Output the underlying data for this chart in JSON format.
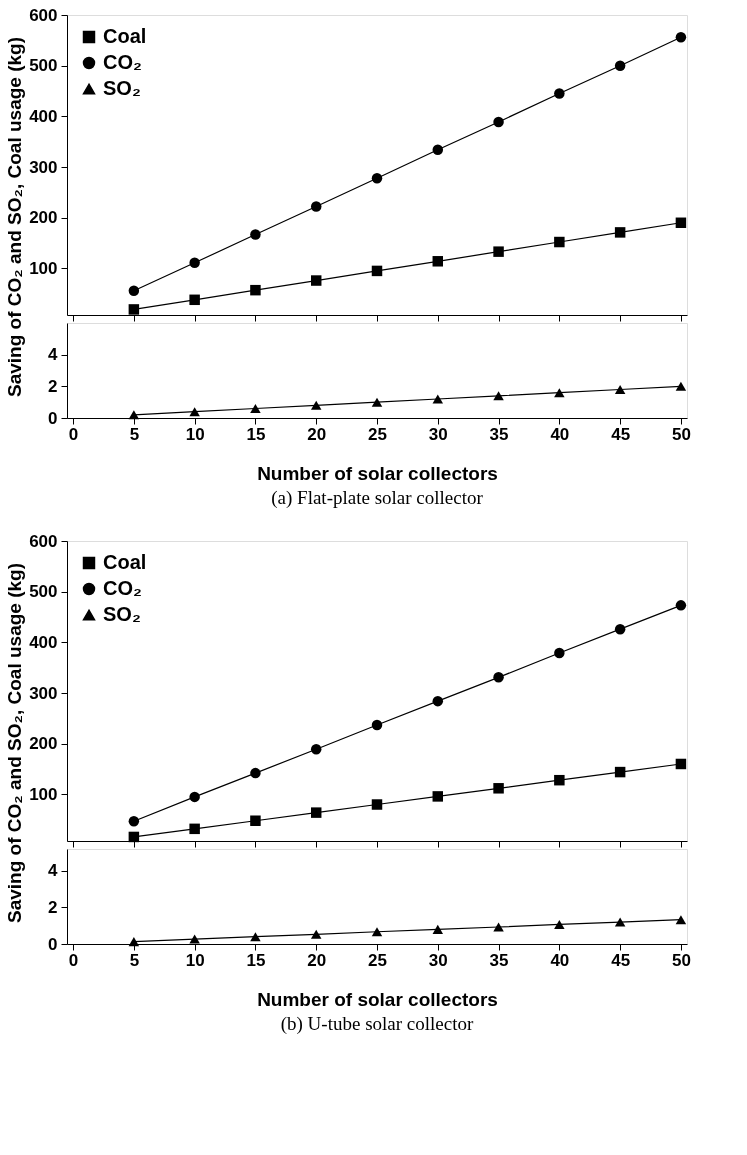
{
  "chart_data": [
    {
      "type": "line",
      "ylabel": "Saving of CO₂ and SO₂, Coal usage (kg)",
      "x": [
        5,
        10,
        15,
        20,
        25,
        30,
        35,
        40,
        45,
        50
      ],
      "xlim": [
        -0.5,
        50.5
      ],
      "xticks": [
        0,
        5,
        10,
        15,
        20,
        25,
        30,
        35,
        40,
        45,
        50
      ],
      "ylim": [
        8,
        600
      ],
      "yticks": [
        100,
        200,
        300,
        400,
        500,
        600
      ],
      "tick_labels": "y",
      "legend": "top left",
      "series": [
        {
          "name": "Coal",
          "color": "#000000",
          "marker": "square",
          "values": [
            19,
            38,
            57,
            76,
            95,
            114,
            133,
            152,
            171,
            190
          ]
        },
        {
          "name": "CO₂",
          "color": "#000000",
          "marker": "circle",
          "values": [
            56,
            111,
            167,
            222,
            278,
            334,
            389,
            445,
            500,
            556
          ]
        }
      ]
    },
    {
      "type": "line",
      "xlabel": "Number of solar collectors",
      "x": [
        5,
        10,
        15,
        20,
        25,
        30,
        35,
        40,
        45,
        50
      ],
      "xlim": [
        -0.5,
        50.5
      ],
      "xticks": [
        0,
        5,
        10,
        15,
        20,
        25,
        30,
        35,
        40,
        45,
        50
      ],
      "ylim": [
        0,
        6
      ],
      "yticks": [
        0,
        2,
        4
      ],
      "annotations": [
        "(a) Flat-plate solar collector"
      ],
      "series": [
        {
          "name": "SO₂",
          "color": "#000000",
          "marker": "triangle",
          "values": [
            0.2,
            0.4,
            0.6,
            0.8,
            1.0,
            1.2,
            1.4,
            1.6,
            1.8,
            2.0
          ]
        }
      ]
    },
    {
      "type": "line",
      "ylabel": "Saving of CO₂ and SO₂, Coal usage (kg)",
      "x": [
        5,
        10,
        15,
        20,
        25,
        30,
        35,
        40,
        45,
        50
      ],
      "xlim": [
        -0.5,
        50.5
      ],
      "xticks": [
        0,
        5,
        10,
        15,
        20,
        25,
        30,
        35,
        40,
        45,
        50
      ],
      "ylim": [
        8,
        600
      ],
      "yticks": [
        100,
        200,
        300,
        400,
        500,
        600
      ],
      "tick_labels": "y",
      "legend": "top left",
      "series": [
        {
          "name": "Coal",
          "color": "#000000",
          "marker": "square",
          "values": [
            16,
            32,
            48,
            64,
            80,
            96,
            112,
            128,
            144,
            160
          ]
        },
        {
          "name": "CO₂",
          "color": "#000000",
          "marker": "circle",
          "values": [
            47,
            95,
            142,
            189,
            237,
            284,
            331,
            379,
            426,
            473
          ]
        }
      ]
    },
    {
      "type": "line",
      "xlabel": "Number of solar collectors",
      "x": [
        5,
        10,
        15,
        20,
        25,
        30,
        35,
        40,
        45,
        50
      ],
      "xlim": [
        -0.5,
        50.5
      ],
      "xticks": [
        0,
        5,
        10,
        15,
        20,
        25,
        30,
        35,
        40,
        45,
        50
      ],
      "ylim": [
        0,
        5.2
      ],
      "yticks": [
        0,
        2,
        4
      ],
      "annotations": [
        "(b) U-tube solar collector"
      ],
      "series": [
        {
          "name": "SO₂",
          "color": "#000000",
          "marker": "triangle",
          "values": [
            0.13,
            0.27,
            0.4,
            0.53,
            0.67,
            0.8,
            0.93,
            1.07,
            1.2,
            1.33
          ]
        }
      ]
    }
  ]
}
